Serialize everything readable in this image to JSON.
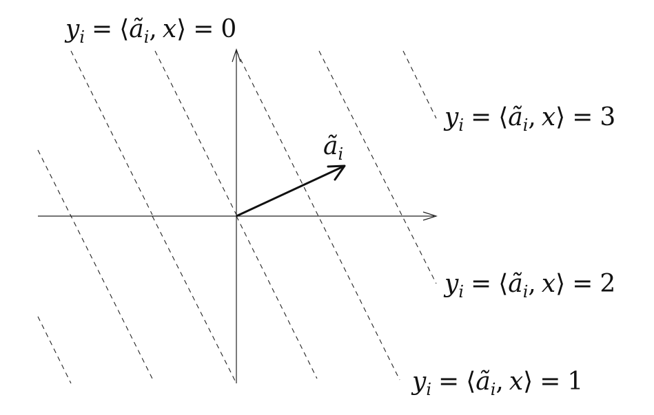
{
  "diagram": {
    "vector_label": {
      "base": "a",
      "accent": "~",
      "subscript": "i"
    },
    "level_sets": [
      {
        "name": "level-0",
        "label": {
          "lhs_var": "y",
          "lhs_sub": "i",
          "equals": "=",
          "open": "⟨",
          "a": "ã",
          "a_sub": "i",
          "comma": ",",
          "x": "x",
          "close": "⟩",
          "equals2": "=",
          "value": "0"
        }
      },
      {
        "name": "level-1",
        "label": {
          "lhs_var": "y",
          "lhs_sub": "i",
          "equals": "=",
          "open": "⟨",
          "a": "ã",
          "a_sub": "i",
          "comma": ",",
          "x": "x",
          "close": "⟩",
          "equals2": "=",
          "value": "1"
        }
      },
      {
        "name": "level-2",
        "label": {
          "lhs_var": "y",
          "lhs_sub": "i",
          "equals": "=",
          "open": "⟨",
          "a": "ã",
          "a_sub": "i",
          "comma": ",",
          "x": "x",
          "close": "⟩",
          "equals2": "=",
          "value": "2"
        }
      },
      {
        "name": "level-3",
        "label": {
          "lhs_var": "y",
          "lhs_sub": "i",
          "equals": "=",
          "open": "⟨",
          "a": "ã",
          "a_sub": "i",
          "comma": ",",
          "x": "x",
          "close": "⟩",
          "equals2": "=",
          "value": "3"
        }
      }
    ]
  }
}
